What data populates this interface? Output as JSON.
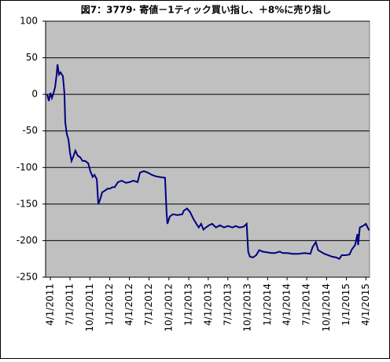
{
  "chart_data": {
    "type": "line",
    "title": "図7：3779· 寄値－1ティック買い指し、＋8%に売り指し",
    "color": "#000080",
    "x": [
      "3/17/2011",
      "3/25/2011",
      "4/1/2011",
      "4/8/2011",
      "4/16/2011",
      "4/23/2011",
      "4/30/2011",
      "5/4/2011",
      "5/11/2011",
      "5/18/2011",
      "5/29/2011",
      "6/5/2011",
      "6/9/2011",
      "6/16/2011",
      "6/24/2011",
      "7/1/2011",
      "7/8/2011",
      "7/15/2011",
      "7/26/2011",
      "8/6/2011",
      "8/17/2011",
      "8/28/2011",
      "9/8/2011",
      "9/23/2011",
      "10/3/2011",
      "10/14/2011",
      "10/22/2011",
      "11/2/2011",
      "11/9/2011",
      "11/16/2011",
      "11/27/2011",
      "12/8/2011",
      "12/22/2011",
      "1/2/2012",
      "1/13/2012",
      "1/24/2012",
      "2/8/2012",
      "2/26/2012",
      "3/15/2012",
      "4/2/2012",
      "4/20/2012",
      "5/9/2012",
      "5/20/2012",
      "6/7/2012",
      "6/25/2012",
      "7/13/2012",
      "7/31/2012",
      "8/18/2012",
      "9/13/2012",
      "9/20/2012",
      "9/24/2012",
      "10/5/2012",
      "10/19/2012",
      "11/10/2012",
      "12/2/2012",
      "12/9/2012",
      "12/24/2012",
      "1/7/2013",
      "1/22/2013",
      "2/5/2013",
      "2/16/2013",
      "2/27/2013",
      "3/10/2013",
      "3/21/2013",
      "4/5/2013",
      "4/19/2013",
      "5/7/2013",
      "5/25/2013",
      "6/13/2013",
      "7/1/2013",
      "7/23/2013",
      "8/6/2013",
      "8/24/2013",
      "9/12/2013",
      "9/26/2013",
      "10/3/2013",
      "10/11/2013",
      "10/25/2013",
      "11/9/2013",
      "11/23/2013",
      "12/8/2013",
      "12/30/2013",
      "1/20/2014",
      "2/4/2014",
      "2/26/2014",
      "3/12/2014",
      "4/3/2014",
      "4/25/2014",
      "5/24/2014",
      "6/22/2014",
      "7/18/2014",
      "7/28/2014",
      "8/12/2014",
      "8/23/2014",
      "9/3/2014",
      "9/21/2014",
      "10/9/2014",
      "10/27/2014",
      "11/15/2014",
      "11/29/2014",
      "12/10/2014",
      "12/28/2014",
      "1/15/2015",
      "1/26/2015",
      "2/10/2015",
      "2/21/2015",
      "2/24/2015",
      "3/4/2015",
      "3/18/2015",
      "4/1/2015",
      "4/9/2015",
      "4/16/2015"
    ],
    "values": [
      0,
      -9,
      2,
      -5,
      2,
      10,
      27,
      41,
      27,
      30,
      25,
      2,
      -38,
      -54,
      -62,
      -80,
      -91,
      -86,
      -77,
      -84,
      -86,
      -91,
      -91,
      -94,
      -105,
      -113,
      -110,
      -116,
      -150,
      -145,
      -134,
      -132,
      -129,
      -129,
      -127,
      -127,
      -120,
      -118,
      -121,
      -120,
      -118,
      -120,
      -107,
      -105,
      -107,
      -110,
      -112,
      -113,
      -114,
      -161,
      -177,
      -167,
      -164,
      -165,
      -164,
      -159,
      -156,
      -161,
      -170,
      -177,
      -182,
      -177,
      -185,
      -182,
      -179,
      -177,
      -182,
      -179,
      -182,
      -180,
      -182,
      -180,
      -182,
      -181,
      -177,
      -215,
      -222,
      -223,
      -220,
      -213,
      -215,
      -216,
      -217,
      -217,
      -215,
      -217,
      -217,
      -218,
      -218,
      -217,
      -218,
      -209,
      -202,
      -213,
      -215,
      -218,
      -220,
      -222,
      -223,
      -225,
      -220,
      -220,
      -219,
      -212,
      -206,
      -191,
      -206,
      -182,
      -180,
      -177,
      -182,
      -186
    ],
    "xlim": [
      "3/10/2011",
      "4/18/2015"
    ],
    "xticks": [
      "4/1/2011",
      "7/1/2011",
      "10/1/2011",
      "1/1/2012",
      "4/1/2012",
      "7/1/2012",
      "10/1/2012",
      "1/1/2013",
      "4/1/2013",
      "7/1/2013",
      "10/1/2013",
      "1/1/2014",
      "4/1/2014",
      "7/1/2014",
      "10/1/2014",
      "1/1/2015",
      "4/1/2015"
    ],
    "ylim": [
      -250,
      100
    ],
    "yticks": [
      -250,
      -200,
      -150,
      -100,
      -50,
      0,
      50,
      100
    ],
    "grid": true
  }
}
